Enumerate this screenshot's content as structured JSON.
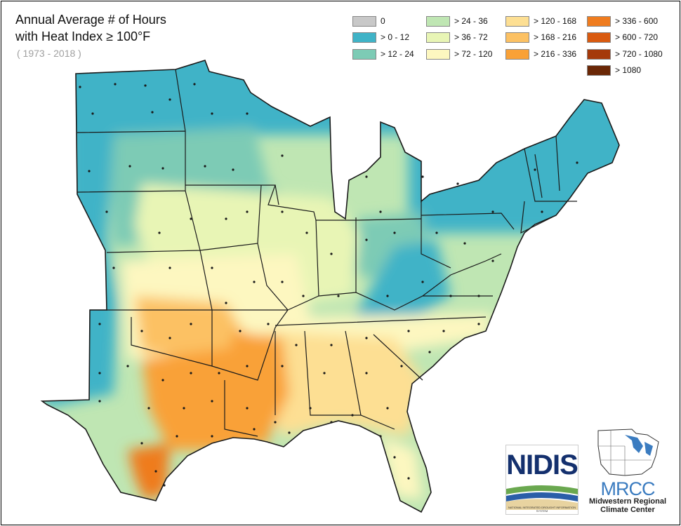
{
  "title": {
    "line1": "Annual Average # of Hours",
    "line2": "with Heat Index ≥ 100°F",
    "years": "( 1973 - 2018 )"
  },
  "legend": [
    {
      "label": "0",
      "color": "#c8c8c8"
    },
    {
      "label": "> 0 - 12",
      "color": "#3fb3c7"
    },
    {
      "label": "> 12 - 24",
      "color": "#7dcbb5"
    },
    {
      "label": "> 24 - 36",
      "color": "#bfe6b3"
    },
    {
      "label": "> 36 - 72",
      "color": "#e8f5b5"
    },
    {
      "label": "> 72 - 120",
      "color": "#fdf7c0"
    },
    {
      "label": "> 120 - 168",
      "color": "#fddf93"
    },
    {
      "label": "> 168 - 216",
      "color": "#fcc163"
    },
    {
      "label": "> 216 - 336",
      "color": "#f9a137"
    },
    {
      "label": "> 336 - 600",
      "color": "#ef7c1f"
    },
    {
      "label": "> 600 - 720",
      "color": "#d95a0f"
    },
    {
      "label": "> 720 - 1080",
      "color": "#a5390a"
    },
    {
      "label": "> 1080",
      "color": "#6a2706"
    }
  ],
  "logos": {
    "nidis": "NIDIS",
    "nidis_footer": "NATIONAL INTEGRATED DROUGHT INFORMATION SYSTEM",
    "mrcc": "MRCC",
    "mrcc_line1": "Midwestern Regional",
    "mrcc_line2": "Climate Center"
  }
}
